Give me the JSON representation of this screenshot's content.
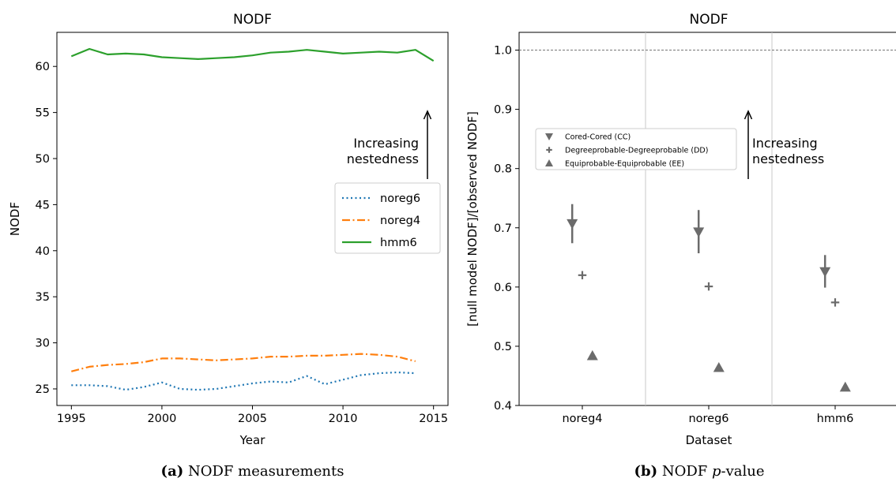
{
  "chart_data": [
    {
      "type": "line",
      "title": "NODF",
      "xlabel": "Year",
      "ylabel": "NODF",
      "xlim": [
        1994.2,
        2015.8
      ],
      "ylim": [
        23.2,
        63.7
      ],
      "xticks": [
        1995,
        2000,
        2005,
        2010,
        2015
      ],
      "yticks": [
        25,
        30,
        35,
        40,
        45,
        50,
        55,
        60
      ],
      "x": [
        1995,
        1996,
        1997,
        1998,
        1999,
        2000,
        2001,
        2002,
        2003,
        2004,
        2005,
        2006,
        2007,
        2008,
        2009,
        2010,
        2011,
        2012,
        2013,
        2014,
        2015
      ],
      "series": [
        {
          "name": "noreg6",
          "color": "#1f77b4",
          "style": "dotted",
          "values": [
            25.4,
            25.4,
            25.3,
            24.9,
            25.2,
            25.7,
            25.0,
            24.9,
            25.0,
            25.3,
            25.6,
            25.8,
            25.7,
            26.4,
            25.5,
            26.0,
            26.5,
            26.7,
            26.8,
            26.7,
            null
          ]
        },
        {
          "name": "noreg4",
          "color": "#ff7f0e",
          "style": "dashdot",
          "values": [
            26.9,
            27.4,
            27.6,
            27.7,
            27.9,
            28.3,
            28.3,
            28.2,
            28.1,
            28.2,
            28.3,
            28.5,
            28.5,
            28.6,
            28.6,
            28.7,
            28.8,
            28.7,
            28.5,
            28.0,
            null
          ]
        },
        {
          "name": "hmm6",
          "color": "#2ca02c",
          "style": "solid",
          "values": [
            61.1,
            61.9,
            61.3,
            61.4,
            61.3,
            61.0,
            60.9,
            60.8,
            60.9,
            61.0,
            61.2,
            61.5,
            61.6,
            61.8,
            61.6,
            61.4,
            61.5,
            61.6,
            61.5,
            61.8,
            60.6
          ]
        }
      ],
      "legend": "center-right",
      "annotation": {
        "text_lines": [
          "Increasing",
          "nestedness"
        ],
        "arrow": "up"
      }
    },
    {
      "type": "scatter",
      "title": "NODF",
      "xlabel": "Dataset",
      "ylabel": "[null model NODF]/[observed NODF]",
      "ylim": [
        0.4,
        1.03
      ],
      "yticks": [
        0.4,
        0.5,
        0.6,
        0.7,
        0.8,
        0.9,
        1.0
      ],
      "categories": [
        "noreg4",
        "noreg6",
        "hmm6"
      ],
      "reference_line": 1.0,
      "series": [
        {
          "name": "Cored-Cored (CC)",
          "marker": "triangle-down",
          "offset": -0.08,
          "values": [
            0.707,
            0.693,
            0.626
          ],
          "err_low": [
            0.674,
            0.657,
            0.599
          ],
          "err_high": [
            0.74,
            0.73,
            0.654
          ]
        },
        {
          "name": "Degreeprobable-Degreeprobable (DD)",
          "marker": "plus",
          "offset": 0.0,
          "values": [
            0.62,
            0.601,
            0.574
          ]
        },
        {
          "name": "Equiprobable-Equiprobable (EE)",
          "marker": "triangle-up",
          "offset": 0.08,
          "values": [
            0.484,
            0.464,
            0.431
          ]
        }
      ],
      "legend": "upper-left",
      "annotation": {
        "text_lines": [
          "Increasing",
          "nestedness"
        ],
        "arrow": "up"
      }
    }
  ],
  "captions": [
    {
      "label": "(a)",
      "text": " NODF measurements"
    },
    {
      "label": "(b)",
      "text_before": " NODF ",
      "italic": "p",
      "text_after": "-value"
    }
  ]
}
